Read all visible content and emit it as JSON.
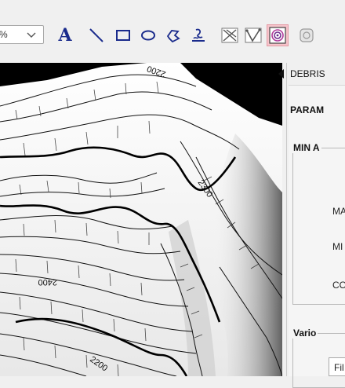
{
  "toolbar": {
    "zoom_value": "%",
    "text_tool_label": "A",
    "tools": [
      "text-tool",
      "line-tool",
      "rectangle-tool",
      "ellipse-tool",
      "freeform-tool",
      "stamp-tool",
      "cross-section-tool",
      "profile-tool",
      "contour-tool",
      "next-tool"
    ],
    "active_tool": "contour-tool",
    "icon_color": "#1a2b8c",
    "active_highlight": "#f6c4cb"
  },
  "map": {
    "contour_labels": [
      "2200",
      "2300",
      "2400",
      "2200"
    ]
  },
  "panel": {
    "title": "DEBRIS",
    "parameters_label": "PARAM",
    "min_group_label": "MIN A",
    "fields": [
      "MA",
      "MI",
      "CO"
    ],
    "various_group_label": "Vario",
    "fil_value": "Fil"
  }
}
